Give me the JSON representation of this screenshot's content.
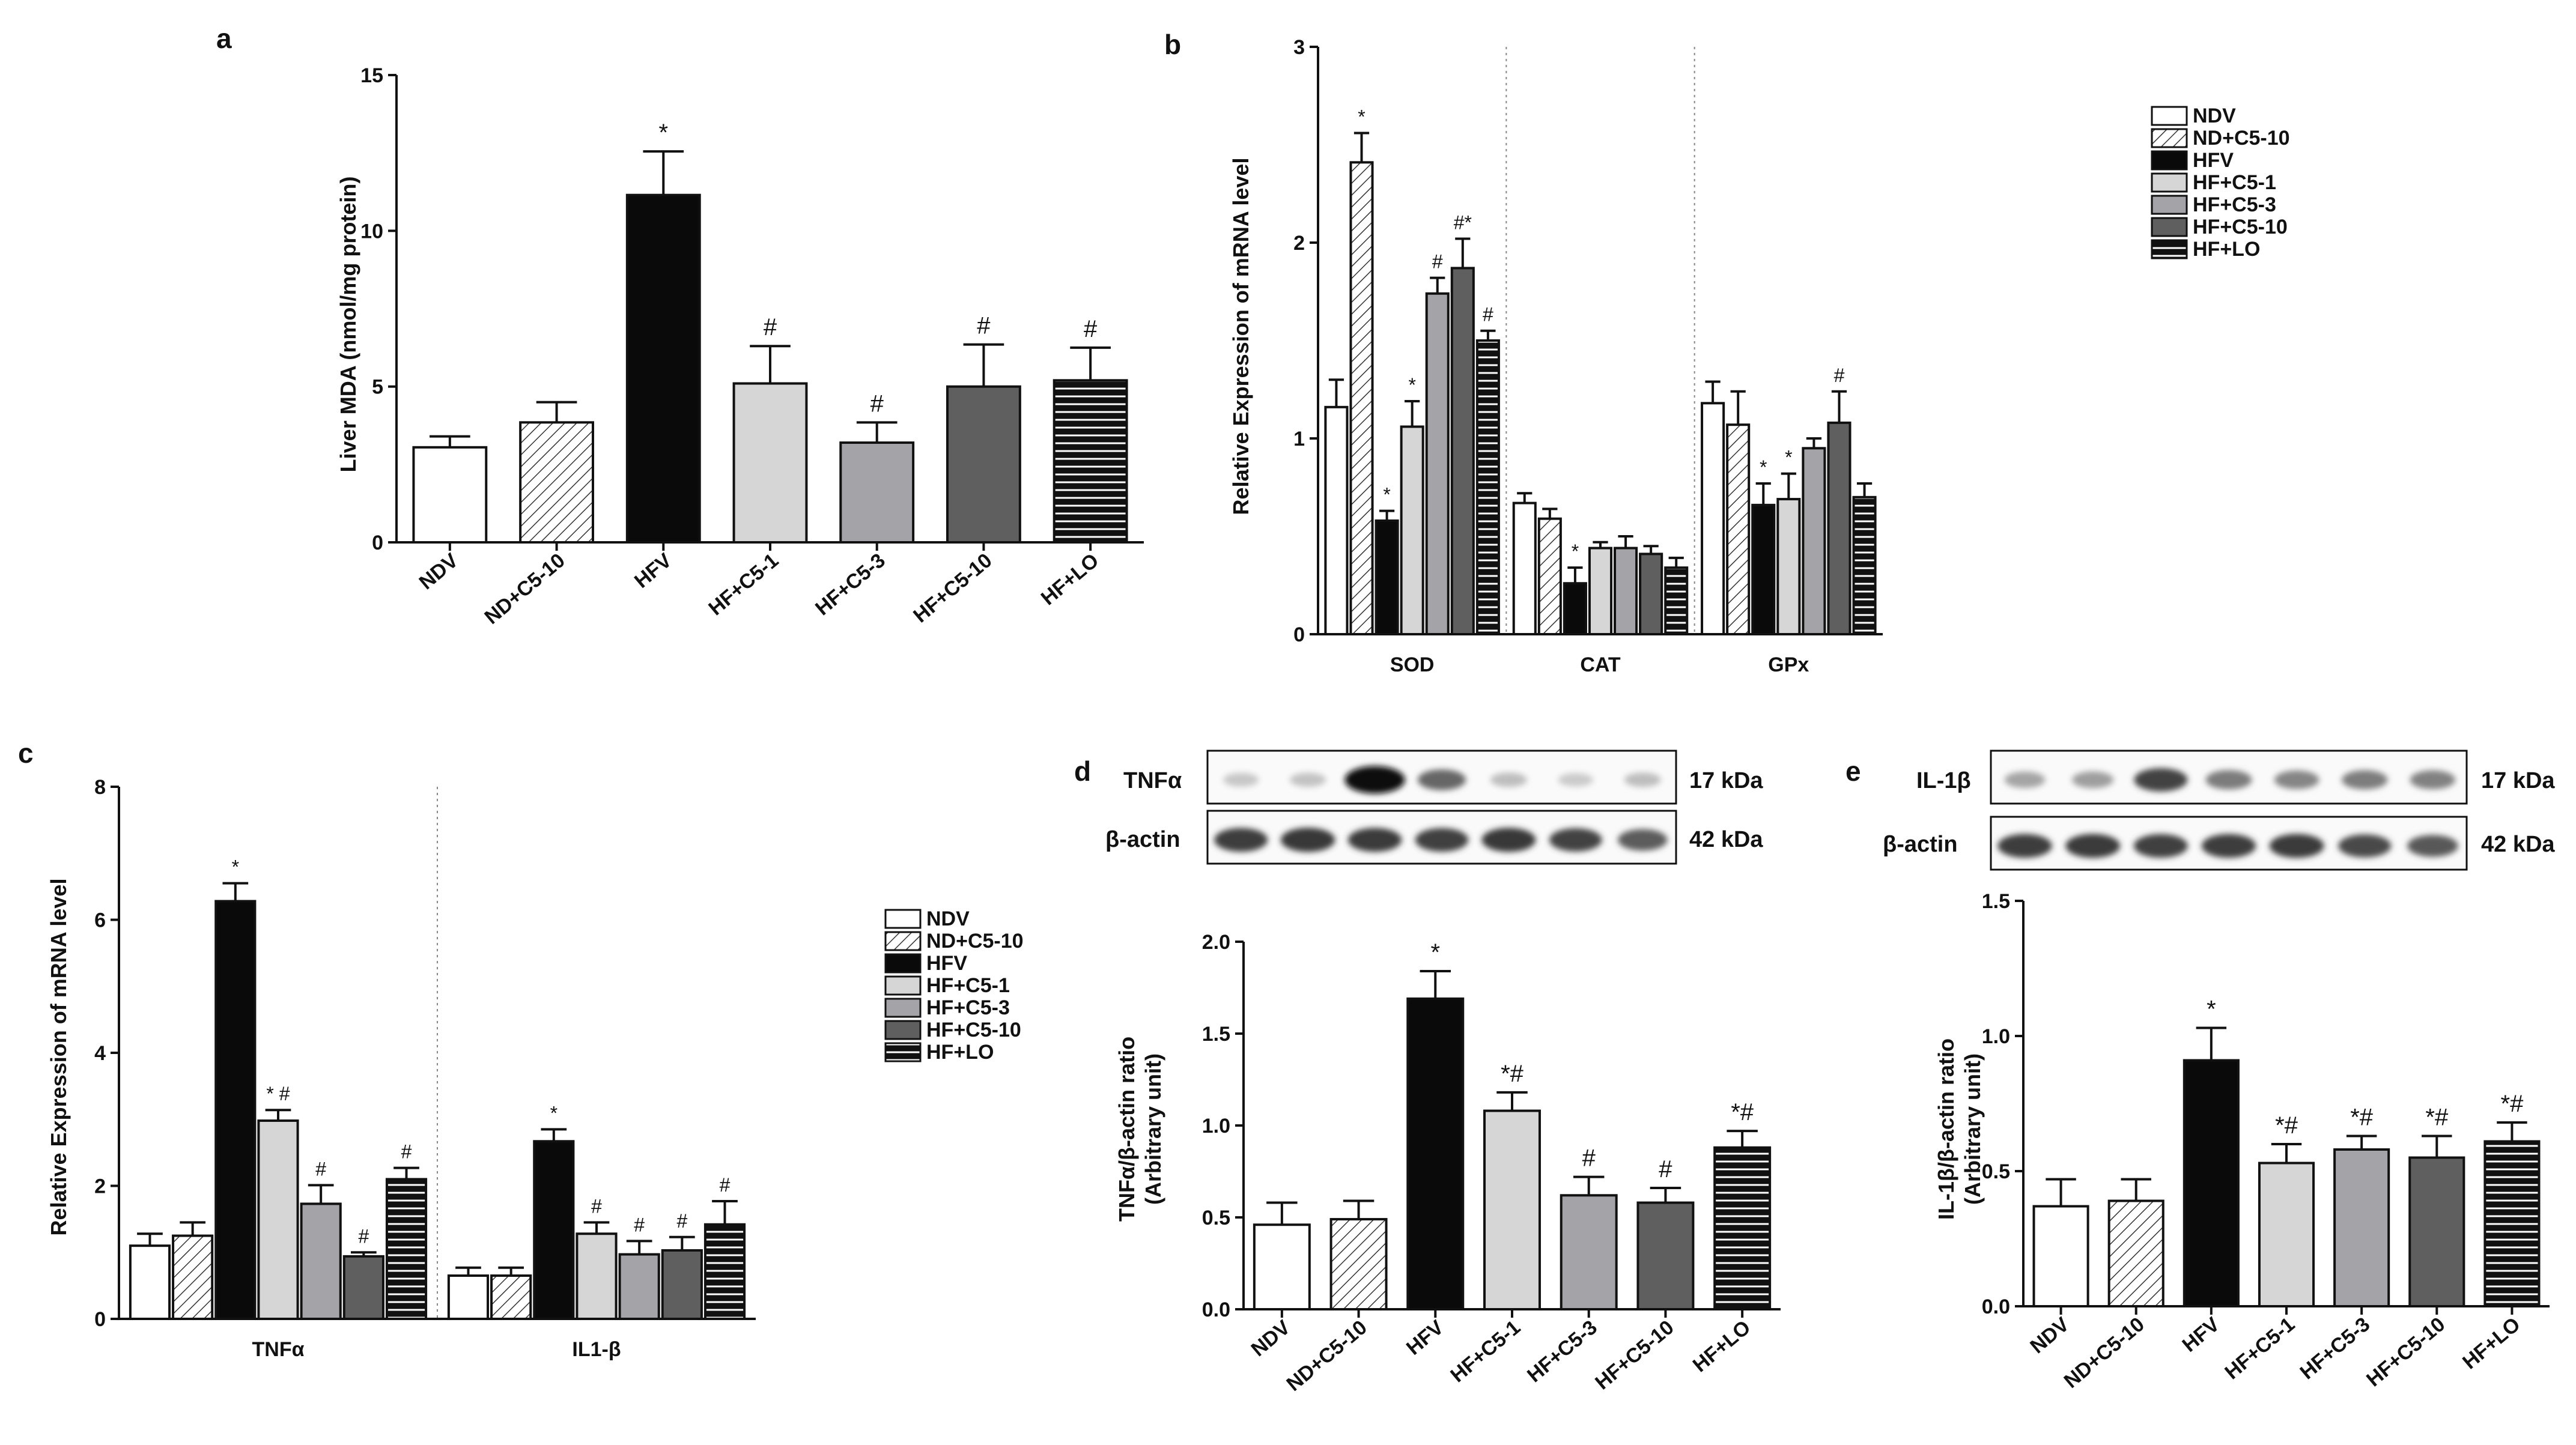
{
  "panels": [
    "a",
    "b",
    "c",
    "d",
    "e"
  ],
  "chart_data": [
    {
      "panel": "a",
      "type": "bar",
      "title": "",
      "xlabel": "",
      "ylabel": "Liver MDA (nmol/mg protein)",
      "ylim": [
        0,
        15
      ],
      "yticks": [
        "0",
        "5",
        "10",
        "15"
      ],
      "categories": [
        "NDV",
        "ND+C5-10",
        "HFV",
        "HF+C5-1",
        "HF+C5-3",
        "HF+C5-10",
        "HF+LO"
      ],
      "values": [
        3.05,
        3.85,
        11.15,
        5.1,
        3.2,
        5.0,
        5.2
      ],
      "errors": [
        0.35,
        0.65,
        1.4,
        1.2,
        0.65,
        1.35,
        1.05
      ],
      "annotations": [
        "",
        "",
        "*",
        "#",
        "#",
        "#",
        "#"
      ]
    },
    {
      "panel": "b",
      "type": "bar",
      "title": "",
      "xlabel": "",
      "ylabel": "Relative Expression of mRNA level",
      "ylim": [
        0,
        3
      ],
      "yticks": [
        "0",
        "1",
        "2",
        "3"
      ],
      "categories": [
        "SOD",
        "CAT",
        "GPx"
      ],
      "legend": [
        "NDV",
        "ND+C5-10",
        "HFV",
        "HF+C5-1",
        "HF+C5-3",
        "HF+C5-10",
        "HF+LO"
      ],
      "series": [
        {
          "name": "NDV",
          "values": [
            1.16,
            0.67,
            1.18
          ],
          "errors": [
            0.14,
            0.05,
            0.11
          ],
          "annotations": [
            "",
            "",
            ""
          ]
        },
        {
          "name": "ND+C5-10",
          "values": [
            2.41,
            0.59,
            1.07
          ],
          "errors": [
            0.15,
            0.05,
            0.17
          ],
          "annotations": [
            "*",
            "",
            ""
          ]
        },
        {
          "name": "HFV",
          "values": [
            0.58,
            0.26,
            0.66
          ],
          "errors": [
            0.05,
            0.08,
            0.11
          ],
          "annotations": [
            "*",
            "*",
            "*"
          ]
        },
        {
          "name": "HF+C5-1",
          "values": [
            1.06,
            0.44,
            0.69
          ],
          "errors": [
            0.13,
            0.03,
            0.13
          ],
          "annotations": [
            "*",
            "",
            "*"
          ]
        },
        {
          "name": "HF+C5-3",
          "values": [
            1.74,
            0.44,
            0.95
          ],
          "errors": [
            0.08,
            0.06,
            0.05
          ],
          "annotations": [
            "#",
            "",
            ""
          ]
        },
        {
          "name": "HF+C5-10",
          "values": [
            1.87,
            0.41,
            1.08
          ],
          "errors": [
            0.15,
            0.04,
            0.16
          ],
          "annotations": [
            "#*",
            "",
            "#"
          ]
        },
        {
          "name": "HF+LO",
          "values": [
            1.5,
            0.34,
            0.7
          ],
          "errors": [
            0.05,
            0.05,
            0.07
          ],
          "annotations": [
            "#",
            "",
            ""
          ]
        }
      ]
    },
    {
      "panel": "c",
      "type": "bar",
      "title": "",
      "xlabel": "",
      "ylabel": "Relative Expression of mRNA level",
      "ylim": [
        0,
        8
      ],
      "yticks": [
        "0",
        "2",
        "4",
        "6",
        "8"
      ],
      "categories": [
        "TNFα",
        "IL1-β"
      ],
      "legend": [
        "NDV",
        "ND+C5-10",
        "HFV",
        "HF+C5-1",
        "HF+C5-3",
        "HF+C5-10",
        "HF+LO"
      ],
      "series": [
        {
          "name": "NDV",
          "values": [
            1.1,
            0.65
          ],
          "errors": [
            0.18,
            0.12
          ],
          "annotations": [
            "",
            ""
          ]
        },
        {
          "name": "ND+C5-10",
          "values": [
            1.25,
            0.65
          ],
          "errors": [
            0.2,
            0.12
          ],
          "annotations": [
            "",
            ""
          ]
        },
        {
          "name": "HFV",
          "values": [
            6.28,
            2.67
          ],
          "errors": [
            0.27,
            0.18
          ],
          "annotations": [
            "*",
            "*"
          ]
        },
        {
          "name": "HF+C5-1",
          "values": [
            2.98,
            1.28
          ],
          "errors": [
            0.16,
            0.17
          ],
          "annotations": [
            "* #",
            "#"
          ]
        },
        {
          "name": "HF+C5-3",
          "values": [
            1.73,
            0.97
          ],
          "errors": [
            0.28,
            0.2
          ],
          "annotations": [
            "#",
            "#"
          ]
        },
        {
          "name": "HF+C5-10",
          "values": [
            0.94,
            1.03
          ],
          "errors": [
            0.06,
            0.2
          ],
          "annotations": [
            "#",
            "#"
          ]
        },
        {
          "name": "HF+LO",
          "values": [
            2.1,
            1.42
          ],
          "errors": [
            0.17,
            0.35
          ],
          "annotations": [
            "#",
            "#"
          ]
        }
      ]
    },
    {
      "panel": "d",
      "type": "bar",
      "title": "",
      "xlabel": "",
      "ylabel": "TNFα/β-actin ratio",
      "ylabel2": "(Arbitrary unit)",
      "ylim": [
        0,
        2
      ],
      "yticks": [
        "0.0",
        "0.5",
        "1.0",
        "1.5",
        "2.0"
      ],
      "categories": [
        "NDV",
        "ND+C5-10",
        "HFV",
        "HF+C5-1",
        "HF+C5-3",
        "HF+C5-10",
        "HF+LO"
      ],
      "values": [
        0.46,
        0.49,
        1.69,
        1.08,
        0.62,
        0.58,
        0.88
      ],
      "errors": [
        0.12,
        0.1,
        0.15,
        0.1,
        0.1,
        0.08,
        0.09
      ],
      "annotations": [
        "",
        "",
        "*",
        "*#",
        "#",
        "#",
        "*#"
      ],
      "blot": {
        "rows": [
          "TNFα",
          "β-actin"
        ],
        "sizes": [
          "17 kDa",
          "42 kDa"
        ]
      }
    },
    {
      "panel": "e",
      "type": "bar",
      "title": "",
      "xlabel": "",
      "ylabel": "IL-1β/β-actin ratio",
      "ylabel2": "(Arbitrary unit)",
      "ylim": [
        0,
        1.5
      ],
      "yticks": [
        "0.0",
        "0.5",
        "1.0",
        "1.5"
      ],
      "categories": [
        "NDV",
        "ND+C5-10",
        "HFV",
        "HF+C5-1",
        "HF+C5-3",
        "HF+C5-10",
        "HF+LO"
      ],
      "values": [
        0.37,
        0.39,
        0.91,
        0.53,
        0.58,
        0.55,
        0.61
      ],
      "errors": [
        0.1,
        0.08,
        0.12,
        0.07,
        0.05,
        0.08,
        0.07
      ],
      "annotations": [
        "",
        "",
        "*",
        "*#",
        "*#",
        "*#",
        "*#"
      ],
      "blot": {
        "rows": [
          "IL-1β",
          "β-actin"
        ],
        "sizes": [
          "17 kDa",
          "42 kDa"
        ]
      }
    }
  ]
}
